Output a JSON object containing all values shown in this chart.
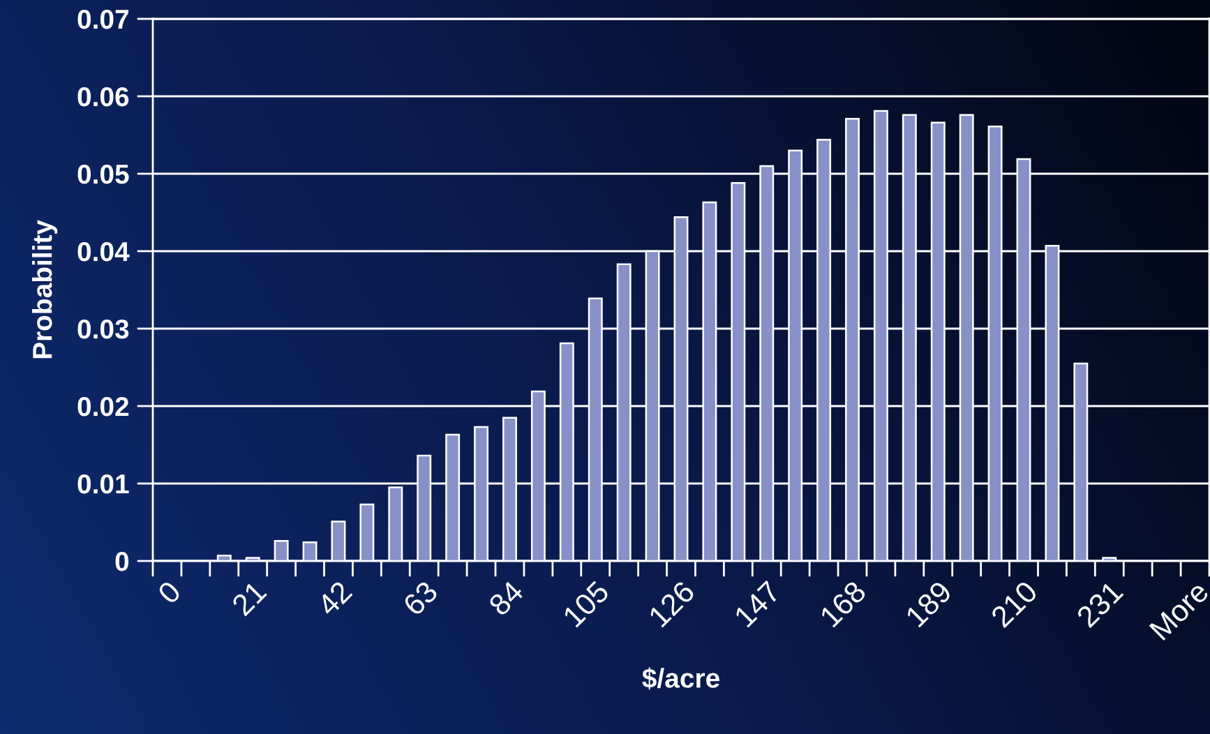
{
  "chart_data": {
    "type": "bar",
    "xlabel": "$/acre",
    "ylabel": "Probability",
    "categories": [
      "0",
      null,
      null,
      "21",
      null,
      null,
      "42",
      null,
      null,
      "63",
      null,
      null,
      "84",
      null,
      null,
      "105",
      null,
      null,
      "126",
      null,
      null,
      "147",
      null,
      null,
      "168",
      null,
      null,
      "189",
      null,
      null,
      "210",
      null,
      null,
      "231",
      null,
      null,
      "More"
    ],
    "values": [
      0,
      0,
      0.0007,
      0.0004,
      0.0026,
      0.0024,
      0.0051,
      0.0073,
      0.0095,
      0.0136,
      0.0163,
      0.0173,
      0.0185,
      0.0219,
      0.0281,
      0.0339,
      0.0383,
      0.04,
      0.0444,
      0.0463,
      0.0488,
      0.051,
      0.053,
      0.0544,
      0.0571,
      0.0581,
      0.0576,
      0.0566,
      0.0576,
      0.0561,
      0.0519,
      0.0407,
      0.0255,
      0.0004,
      0,
      0,
      0
    ],
    "color": "#8791c8",
    "ylim": [
      0,
      0.07
    ],
    "yticks": [
      0,
      0.01,
      0.02,
      0.03,
      0.04,
      0.05,
      0.06,
      0.07
    ],
    "grid": "y"
  }
}
